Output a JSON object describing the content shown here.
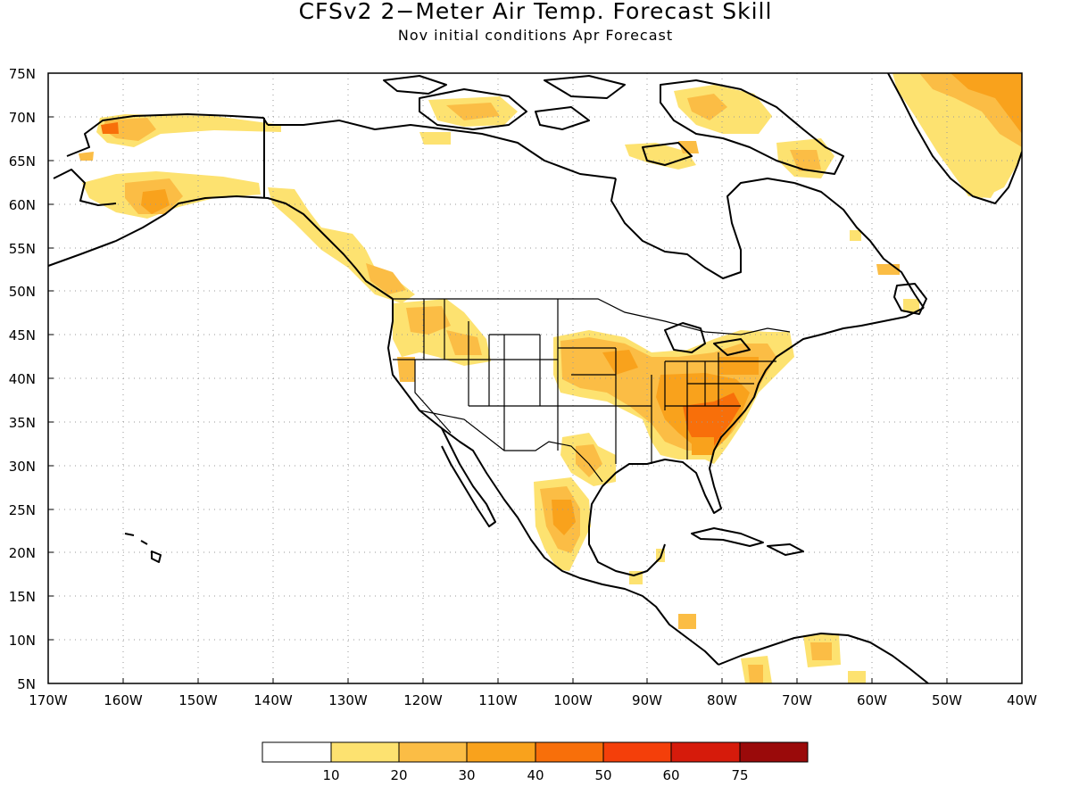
{
  "map": {
    "title": "CFSv2 2−Meter Air Temp. Forecast Skill",
    "subtitle": "Nov initial conditions  Apr Forecast",
    "lat_ticks": [
      "75N",
      "70N",
      "65N",
      "60N",
      "55N",
      "50N",
      "45N",
      "40N",
      "35N",
      "30N",
      "25N",
      "20N",
      "15N",
      "10N",
      "5N"
    ],
    "lon_ticks": [
      "170W",
      "160W",
      "150W",
      "140W",
      "130W",
      "120W",
      "110W",
      "100W",
      "90W",
      "80W",
      "70W",
      "60W",
      "50W",
      "40W"
    ],
    "extent": {
      "lon": [
        -170,
        -40
      ],
      "lat": [
        5,
        75
      ]
    },
    "grid": true,
    "colors": {
      "c0": "#ffffff",
      "c10": "#fde270",
      "c20": "#fbbd45",
      "c30": "#f9a21c",
      "c40": "#f86f0a",
      "c50": "#f43f0a",
      "c60": "#d61b0b",
      "c75": "#9a0a0a"
    }
  },
  "legend": {
    "labels": [
      "10",
      "20",
      "30",
      "40",
      "50",
      "60",
      "75"
    ],
    "colors": [
      "#ffffff",
      "#fde270",
      "#fbbd45",
      "#f9a21c",
      "#f86f0a",
      "#f43f0a",
      "#d61b0b",
      "#9a0a0a"
    ]
  }
}
